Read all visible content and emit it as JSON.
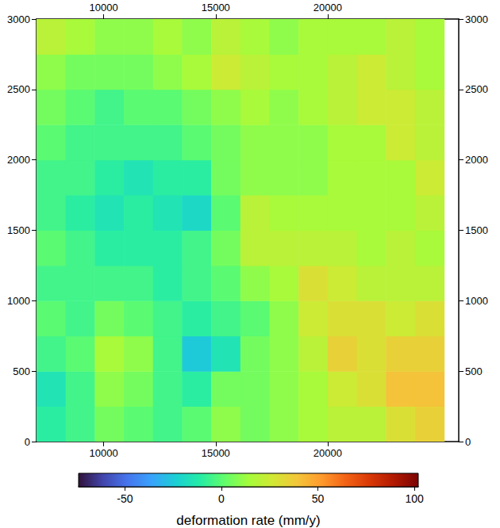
{
  "chart_data": {
    "type": "heatmap",
    "xlim": [
      7000,
      25850
    ],
    "ylim": [
      0,
      3000
    ],
    "xticks": [
      10000,
      15000,
      20000
    ],
    "yticks": [
      0,
      500,
      1000,
      1500,
      2000,
      2500,
      3000
    ],
    "x_edges": [
      7000,
      8300,
      9600,
      10900,
      12200,
      13500,
      14800,
      16100,
      17400,
      18700,
      20000,
      21300,
      22600,
      23900,
      25200
    ],
    "y_edges": [
      0,
      250,
      500,
      750,
      1000,
      1250,
      1500,
      1750,
      2000,
      2250,
      2500,
      2750,
      3000
    ],
    "cells": [
      [
        -10,
        -5,
        5,
        0,
        -5,
        0,
        10,
        5,
        10,
        15,
        20,
        20,
        30,
        35
      ],
      [
        -15,
        -5,
        10,
        5,
        -5,
        -10,
        5,
        5,
        10,
        15,
        25,
        30,
        40,
        40
      ],
      [
        -5,
        0,
        15,
        10,
        -5,
        -25,
        -15,
        5,
        10,
        20,
        35,
        30,
        35,
        35
      ],
      [
        0,
        -5,
        5,
        0,
        -5,
        -10,
        -5,
        0,
        10,
        25,
        30,
        30,
        25,
        30
      ],
      [
        -5,
        -5,
        -5,
        -5,
        -10,
        -5,
        0,
        10,
        15,
        30,
        25,
        20,
        20,
        20
      ],
      [
        0,
        -5,
        -10,
        -10,
        -10,
        -5,
        5,
        20,
        20,
        20,
        20,
        15,
        20,
        15
      ],
      [
        -5,
        -10,
        -15,
        -10,
        -15,
        -20,
        0,
        20,
        15,
        15,
        15,
        15,
        15,
        20
      ],
      [
        -5,
        -5,
        -10,
        -15,
        -10,
        -10,
        5,
        10,
        10,
        10,
        15,
        15,
        15,
        25
      ],
      [
        0,
        -5,
        -5,
        -5,
        -5,
        0,
        5,
        10,
        10,
        10,
        15,
        15,
        25,
        20
      ],
      [
        5,
        0,
        -5,
        0,
        0,
        5,
        10,
        15,
        10,
        15,
        20,
        25,
        25,
        20
      ],
      [
        10,
        5,
        5,
        5,
        10,
        15,
        25,
        20,
        15,
        15,
        20,
        25,
        20,
        15
      ],
      [
        20,
        15,
        10,
        10,
        15,
        10,
        20,
        15,
        10,
        15,
        15,
        15,
        20,
        15
      ]
    ],
    "colorbar": {
      "label": "deformation rate (mm/y)",
      "range": [
        -74,
        102
      ],
      "ticks": [
        -50,
        0,
        50,
        100
      ]
    }
  }
}
